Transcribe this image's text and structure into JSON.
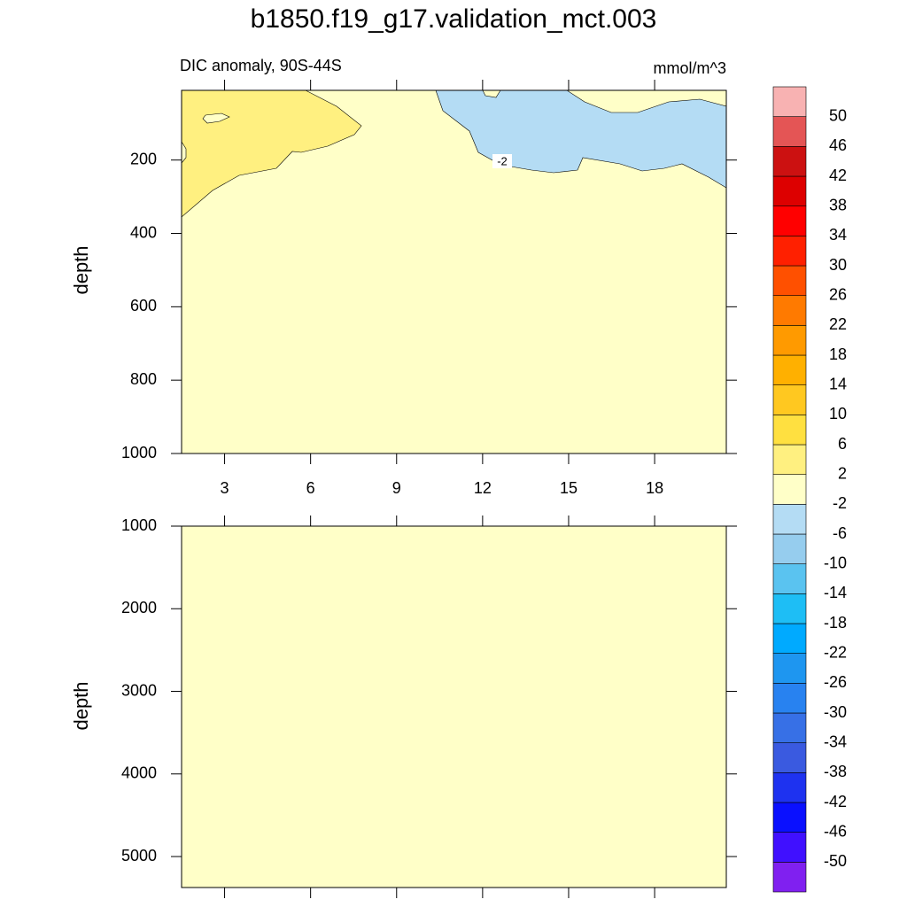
{
  "title": "b1850.f19_g17.validation_mct.003",
  "chart_data": [
    {
      "type": "contour",
      "subtitle_left": "DIC anomaly, 90S-44S",
      "subtitle_right": "mmol/m^3",
      "ylabel": "depth",
      "xlim": [
        1.5,
        20.5
      ],
      "xticks": [
        3,
        6,
        9,
        12,
        15,
        18
      ],
      "ylim": [
        10,
        1000
      ],
      "yticks": [
        200,
        400,
        600,
        800,
        1000
      ]
    },
    {
      "type": "contour",
      "ylabel": "depth",
      "xlim": [
        1.5,
        20.5
      ],
      "xticks": [
        3,
        6,
        9,
        12,
        15,
        18
      ],
      "ylim": [
        1000,
        5375
      ],
      "yticks": [
        1000,
        2000,
        3000,
        4000,
        5000
      ]
    },
    {
      "type": "colorbar",
      "levels": [
        -50,
        -46,
        -42,
        -38,
        -34,
        -30,
        -26,
        -22,
        -18,
        -14,
        -10,
        -6,
        -2,
        2,
        6,
        10,
        14,
        18,
        22,
        26,
        30,
        34,
        38,
        42,
        46,
        50
      ],
      "colors": [
        "#8020f0",
        "#4010ff",
        "#0a10ff",
        "#1e32f0",
        "#3a5ae0",
        "#3770e6",
        "#2882f0",
        "#1e96f0",
        "#00aaff",
        "#1ebef5",
        "#5ac3f0",
        "#96cdee",
        "#b4dcf4",
        "#ffffc8",
        "#fff080",
        "#ffe040",
        "#ffc820",
        "#ffb000",
        "#ff9a00",
        "#ff7a00",
        "#ff5000",
        "#ff2000",
        "#ff0000",
        "#dd0000",
        "#cc1111",
        "#e45555",
        "#f8b2b2"
      ]
    }
  ]
}
